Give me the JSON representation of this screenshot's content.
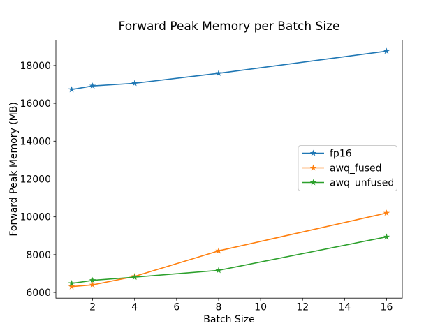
{
  "chart_data": {
    "type": "line",
    "title": "Forward Peak Memory per Batch Size",
    "xlabel": "Batch Size",
    "ylabel": "Forward Peak Memory (MB)",
    "x": [
      1,
      2,
      4,
      8,
      16
    ],
    "series": [
      {
        "name": "fp16",
        "color": "#1f77b4",
        "values": [
          16730,
          16920,
          17060,
          17590,
          18760
        ]
      },
      {
        "name": "awq_fused",
        "color": "#ff7f0e",
        "values": [
          6310,
          6400,
          6850,
          8200,
          10200
        ]
      },
      {
        "name": "awq_unfused",
        "color": "#2ca02c",
        "values": [
          6480,
          6640,
          6810,
          7170,
          8940
        ]
      }
    ],
    "marker": "star",
    "xlim": [
      0.25,
      16.75
    ],
    "ylim": [
      5700,
      19340
    ],
    "xticks": [
      2,
      4,
      6,
      8,
      10,
      12,
      14,
      16
    ],
    "yticks": [
      6000,
      8000,
      10000,
      12000,
      14000,
      16000,
      18000
    ],
    "grid": false,
    "legend": {
      "position": "center right",
      "entries": [
        "fp16",
        "awq_fused",
        "awq_unfused"
      ]
    },
    "colors": {
      "background": "#ffffff",
      "spine": "#000000",
      "text": "#000000",
      "legend_border": "#cccccc"
    }
  }
}
